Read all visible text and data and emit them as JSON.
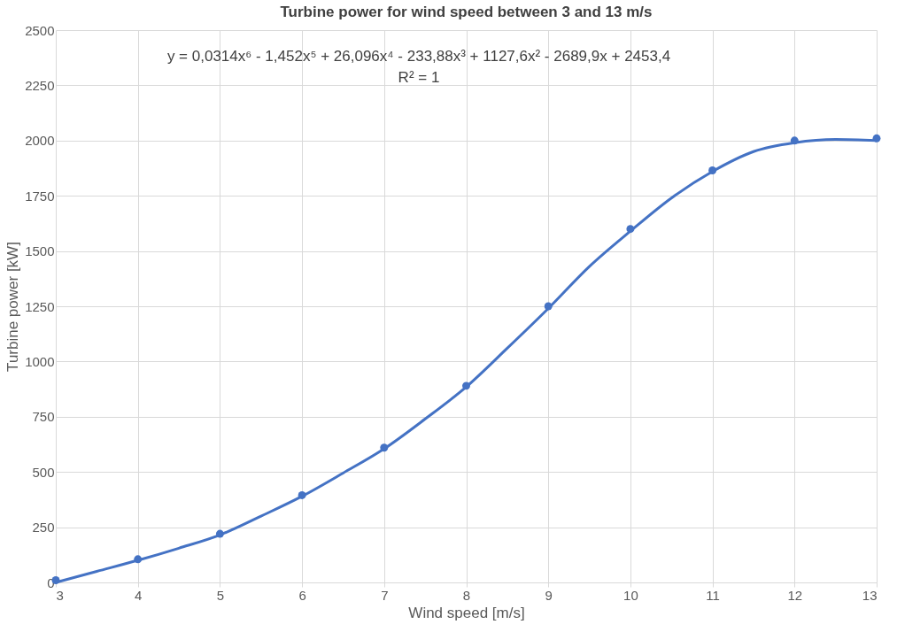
{
  "chart_data": {
    "type": "scatter",
    "title": "Turbine power for wind speed between 3 and 13 m/s",
    "xlabel": "Wind speed [m/s]",
    "ylabel": "Turbine power [kW]",
    "xlim": [
      3,
      13
    ],
    "xticks": [
      3,
      4,
      5,
      6,
      7,
      8,
      9,
      10,
      11,
      12,
      13
    ],
    "ylim": [
      0,
      2500
    ],
    "yticks": [
      0,
      250,
      500,
      750,
      1000,
      1250,
      1500,
      1750,
      2000,
      2250,
      2500
    ],
    "grid": true,
    "series": [
      {
        "color": "#4472c4",
        "marker": "circle",
        "x": [
          3,
          4,
          5,
          6,
          7,
          8,
          9,
          10,
          11,
          12,
          13
        ],
        "values": [
          10,
          105,
          220,
          395,
          610,
          890,
          1250,
          1600,
          1865,
          2000,
          2010
        ]
      },
      {
        "type": "line",
        "color": "#4472c4",
        "line_style": "solid",
        "marker": "none",
        "x": [
          3,
          3.5,
          4,
          4.5,
          5,
          5.5,
          6,
          6.5,
          7,
          7.5,
          8,
          8.5,
          9,
          9.5,
          10,
          10.5,
          11,
          11.5,
          12,
          12.5,
          13
        ],
        "values": [
          0,
          50,
          100,
          155,
          215,
          300,
          390,
          495,
          605,
          740,
          885,
          1060,
          1240,
          1430,
          1590,
          1740,
          1860,
          1950,
          1990,
          2005,
          2000
        ]
      }
    ],
    "annotations": [
      "y = 0,0314x⁶ - 1,452x⁵ + 26,096x⁴ - 233,88x³ + 1127,6x² - 2689,9x + 2453,4",
      "R² = 1"
    ]
  }
}
